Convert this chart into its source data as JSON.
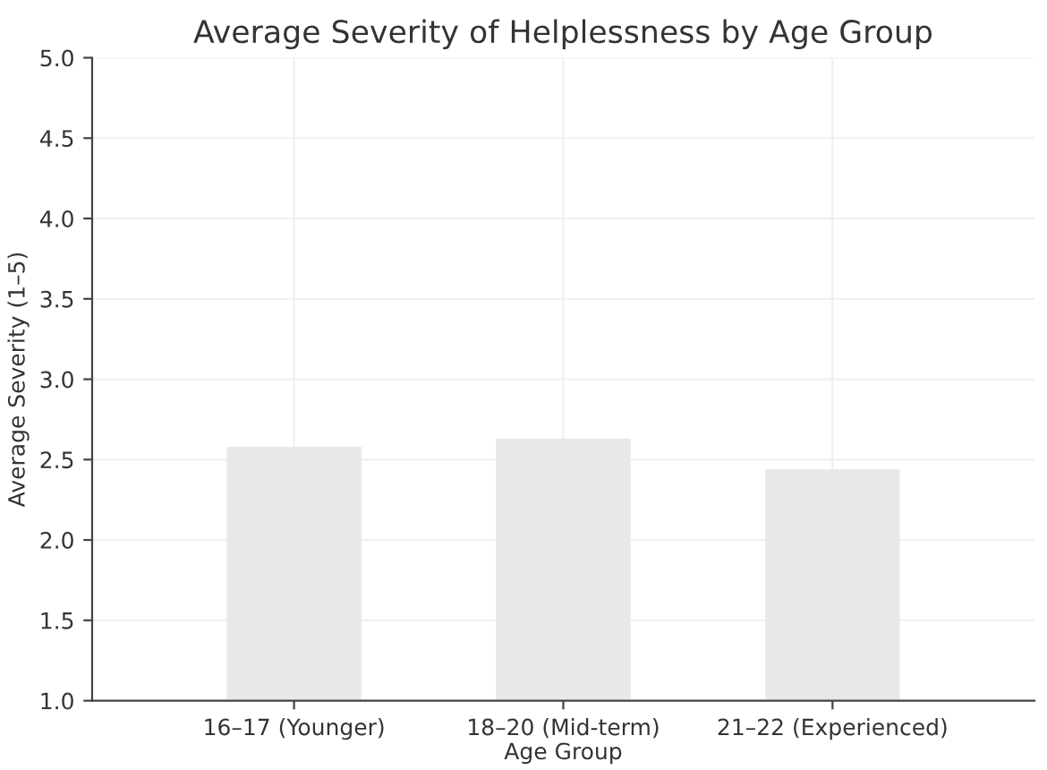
{
  "chart_data": {
    "type": "bar",
    "title": "Average Severity of Helplessness by Age Group",
    "xlabel": "Age Group",
    "ylabel": "Average Severity (1–5)",
    "categories": [
      "16–17 (Younger)",
      "18–20 (Mid-term)",
      "21–22 (Experienced)"
    ],
    "values": [
      2.58,
      2.63,
      2.44
    ],
    "color": "#e8e8e8",
    "ylim": [
      1,
      5
    ],
    "yticks": [
      {
        "value": 1,
        "label": "1.0"
      },
      {
        "value": 1.5,
        "label": "1.5"
      },
      {
        "value": 2,
        "label": "2.0"
      },
      {
        "value": 2.5,
        "label": "2.5"
      },
      {
        "value": 3,
        "label": "3.0"
      },
      {
        "value": 3.5,
        "label": "3.5"
      },
      {
        "value": 4,
        "label": "4.0"
      },
      {
        "value": 4.5,
        "label": "4.5"
      },
      {
        "value": 5,
        "label": "5.0"
      }
    ],
    "grid": true
  }
}
